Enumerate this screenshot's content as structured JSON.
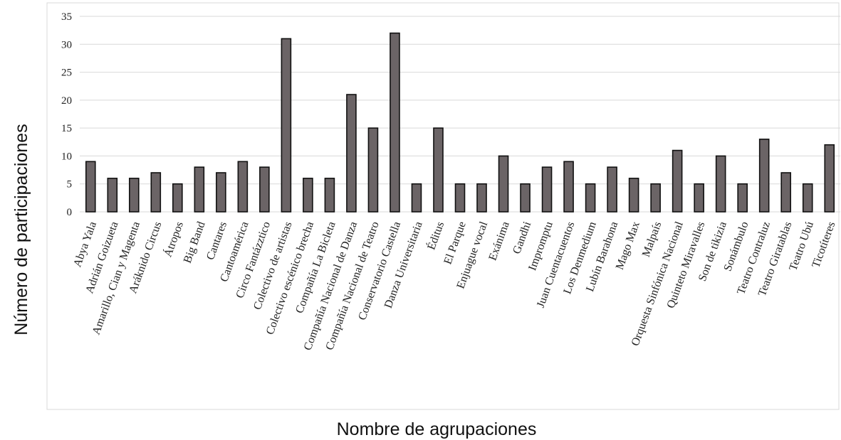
{
  "chart_data": {
    "type": "bar",
    "title": "",
    "xlabel": "Nombre de agrupaciones",
    "ylabel": "Número de participaciones",
    "ylim": [
      0,
      35
    ],
    "yticks": [
      0,
      5,
      10,
      15,
      20,
      25,
      30,
      35
    ],
    "grid": true,
    "bar_color": "#6b6466",
    "categories": [
      "Abya Yala",
      "Adrián Goizueta",
      "Amarillo, Cian y Magenta",
      "Aráknido Circus",
      "Átropos",
      "Big Band",
      "Cantares",
      "Cantoamérica",
      "Circo Fantázztico",
      "Colectivo de artistas",
      "Colectivo escénico brecha",
      "Compañía La Bicleta",
      "Compañía Nacional de Danza",
      "Compañía Nacional de Teatro",
      "Conservatorio Castella",
      "Danza Universitaria",
      "Éditus",
      "El Parque",
      "Enjuague vocal",
      "Exánima",
      "Gandhi",
      "Impromptu",
      "Juan Cuentacuentos",
      "Los Denmedium",
      "Lubín Barahona",
      "Mago Max",
      "Malpaís",
      "Orquesta Sinfónica Nacional",
      "Quinteto Miravalles",
      "Son de tikizia",
      "Sonámbulo",
      "Teatro Contraluz",
      "Teatro Giratablas",
      "Teatro Ubú",
      "Ticotíteres"
    ],
    "values": [
      9,
      6,
      6,
      7,
      5,
      8,
      7,
      9,
      8,
      31,
      6,
      6,
      21,
      15,
      32,
      5,
      15,
      5,
      5,
      10,
      5,
      8,
      9,
      5,
      8,
      6,
      5,
      11,
      5,
      10,
      5,
      13,
      7,
      5,
      12
    ]
  }
}
